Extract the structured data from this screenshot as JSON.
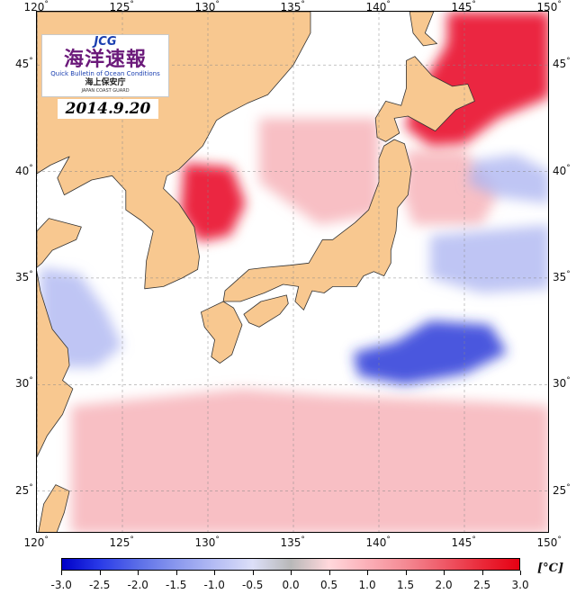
{
  "header": {
    "logo_mark": "JCG",
    "logo_title": "海洋速報",
    "logo_subtitle": "Quick Bulletin of Ocean Conditions",
    "agency": "海上保安庁",
    "agency_en": "JAPAN COAST GUARD",
    "date": "2014.9.20"
  },
  "map": {
    "lon_range": [
      120,
      150
    ],
    "lat_range": [
      23,
      47.5
    ],
    "lon_ticks_top": [
      {
        "value": 120,
        "label": "120"
      },
      {
        "value": 125,
        "label": "125"
      },
      {
        "value": 130,
        "label": "130"
      },
      {
        "value": 135,
        "label": "135"
      },
      {
        "value": 140,
        "label": "140"
      },
      {
        "value": 145,
        "label": "145"
      },
      {
        "value": 150,
        "label": "150"
      }
    ],
    "lon_ticks_bottom": [
      {
        "value": 120,
        "label": "120"
      },
      {
        "value": 125,
        "label": "125"
      },
      {
        "value": 130,
        "label": "130"
      },
      {
        "value": 135,
        "label": "135"
      },
      {
        "value": 140,
        "label": "140"
      },
      {
        "value": 145,
        "label": "145"
      },
      {
        "value": 150,
        "label": "150"
      }
    ],
    "lat_ticks_left": [
      {
        "value": 45,
        "label": "45"
      },
      {
        "value": 40,
        "label": "40"
      },
      {
        "value": 35,
        "label": "35"
      },
      {
        "value": 30,
        "label": "30"
      },
      {
        "value": 25,
        "label": "25"
      }
    ],
    "lat_ticks_right": [
      {
        "value": 45,
        "label": "45"
      },
      {
        "value": 40,
        "label": "40"
      },
      {
        "value": 35,
        "label": "35"
      },
      {
        "value": 30,
        "label": "30"
      },
      {
        "value": 25,
        "label": "25"
      }
    ],
    "degree_symbol": "°",
    "colors": {
      "land": "#f8c890",
      "coast": "#333333",
      "grid": "#888888",
      "anomaly_strong_pos": "#e8001c",
      "anomaly_pos": "#f6aab0",
      "anomaly_neutral": "#ffffff",
      "anomaly_neg": "#aab2f0",
      "anomaly_strong_neg": "#2a38d8"
    },
    "anomaly_regions": [
      {
        "name": "warm-okhotsk",
        "level": "strong_pos",
        "points": [
          [
            144,
            47.5
          ],
          [
            150,
            47.5
          ],
          [
            150,
            43.5
          ],
          [
            147,
            42.5
          ],
          [
            145,
            41.3
          ],
          [
            143,
            41.2
          ],
          [
            141.5,
            42.1
          ],
          [
            142.5,
            44
          ],
          [
            144,
            46
          ]
        ]
      },
      {
        "name": "warm-yellow-sea",
        "level": "strong_pos",
        "points": [
          [
            128.6,
            40.4
          ],
          [
            131.4,
            40.2
          ],
          [
            132.2,
            38.5
          ],
          [
            131.3,
            37
          ],
          [
            129.5,
            36.7
          ],
          [
            128.4,
            38
          ]
        ]
      },
      {
        "name": "warm-south-belt",
        "level": "pos",
        "points": [
          [
            122,
            29
          ],
          [
            132,
            29.8
          ],
          [
            137,
            29.5
          ],
          [
            146,
            29.2
          ],
          [
            150,
            29
          ],
          [
            150,
            23
          ],
          [
            122,
            23
          ]
        ]
      },
      {
        "name": "warm-sea-of-japan",
        "level": "pos",
        "points": [
          [
            133,
            42.5
          ],
          [
            140,
            42.5
          ],
          [
            140,
            38
          ],
          [
            136.5,
            37.5
          ],
          [
            133,
            39.5
          ]
        ]
      },
      {
        "name": "warm-tsugaru-east",
        "level": "pos",
        "points": [
          [
            141.6,
            41
          ],
          [
            145,
            41
          ],
          [
            147,
            39
          ],
          [
            146,
            37.5
          ],
          [
            142,
            37.5
          ],
          [
            141.4,
            39
          ]
        ]
      },
      {
        "name": "cold-kuroshio-south",
        "level": "strong_neg",
        "points": [
          [
            138.5,
            31.5
          ],
          [
            141,
            32
          ],
          [
            143,
            33
          ],
          [
            146.5,
            32.8
          ],
          [
            147.5,
            31.5
          ],
          [
            145,
            30.5
          ],
          [
            141.5,
            30
          ],
          [
            138.8,
            30.4
          ]
        ]
      },
      {
        "name": "cold-sanriku",
        "level": "neg",
        "points": [
          [
            143,
            37
          ],
          [
            150,
            37.5
          ],
          [
            150,
            34.5
          ],
          [
            146,
            34.3
          ],
          [
            143,
            35
          ]
        ]
      },
      {
        "name": "cold-east-china-sea",
        "level": "neg",
        "points": [
          [
            120.2,
            35.5
          ],
          [
            122.5,
            35.2
          ],
          [
            124,
            33.5
          ],
          [
            125,
            31.8
          ],
          [
            123.5,
            30.8
          ],
          [
            121.5,
            30.8
          ],
          [
            120.2,
            32.5
          ]
        ]
      },
      {
        "name": "cold-kuril",
        "level": "neg",
        "points": [
          [
            145.5,
            40.5
          ],
          [
            148,
            40.8
          ],
          [
            150,
            40
          ],
          [
            150,
            38.5
          ],
          [
            147,
            38.8
          ],
          [
            145.2,
            39.4
          ]
        ]
      }
    ],
    "land_polygons": [
      {
        "name": "asia-mainland",
        "points": [
          [
            120,
            47.5
          ],
          [
            136,
            47.5
          ],
          [
            136,
            46.5
          ],
          [
            135,
            45
          ],
          [
            133.5,
            43.6
          ],
          [
            132.3,
            43.2
          ],
          [
            131.1,
            42.7
          ],
          [
            130.5,
            42.4
          ],
          [
            129.7,
            41.2
          ],
          [
            128.3,
            40.1
          ],
          [
            127.6,
            39.8
          ],
          [
            127.4,
            39.2
          ],
          [
            128.3,
            38.5
          ],
          [
            129.2,
            37.4
          ],
          [
            129.5,
            36
          ],
          [
            129.4,
            35.4
          ],
          [
            128.5,
            35
          ],
          [
            127.4,
            34.6
          ],
          [
            126.3,
            34.5
          ],
          [
            126.4,
            35.8
          ],
          [
            126.8,
            37.2
          ],
          [
            126.1,
            37.7
          ],
          [
            125.2,
            38.2
          ],
          [
            125.2,
            39.1
          ],
          [
            124.4,
            39.8
          ],
          [
            123.2,
            39.6
          ],
          [
            121.6,
            38.9
          ],
          [
            121.2,
            39.7
          ],
          [
            121.9,
            40.7
          ],
          [
            120.8,
            40.3
          ],
          [
            120,
            39.9
          ]
        ]
      },
      {
        "name": "shandong-east-china",
        "points": [
          [
            120,
            37.2
          ],
          [
            120.7,
            37.8
          ],
          [
            122.6,
            37.4
          ],
          [
            122.3,
            36.8
          ],
          [
            120.9,
            36.3
          ],
          [
            120.3,
            35.7
          ],
          [
            120,
            35.5
          ]
        ]
      },
      {
        "name": "china-southeast-coast",
        "points": [
          [
            120,
            35.3
          ],
          [
            120.2,
            34.4
          ],
          [
            120.9,
            32.6
          ],
          [
            121.8,
            31.7
          ],
          [
            121.9,
            30.9
          ],
          [
            121.5,
            30.2
          ],
          [
            122.1,
            29.8
          ],
          [
            121.5,
            28.6
          ],
          [
            120.6,
            27.6
          ],
          [
            120,
            26.6
          ]
        ]
      },
      {
        "name": "sakhalin",
        "points": [
          [
            141.8,
            47.5
          ],
          [
            143.2,
            47.5
          ],
          [
            142.7,
            46.5
          ],
          [
            143.4,
            46
          ],
          [
            142.6,
            45.9
          ],
          [
            142,
            46.5
          ]
        ]
      },
      {
        "name": "hokkaido",
        "points": [
          [
            139.9,
            41.6
          ],
          [
            140.4,
            41.4
          ],
          [
            141.2,
            41.8
          ],
          [
            140.9,
            42.5
          ],
          [
            141.7,
            42.6
          ],
          [
            143.3,
            41.9
          ],
          [
            144.5,
            42.9
          ],
          [
            145.6,
            43.3
          ],
          [
            145.2,
            44.1
          ],
          [
            144.3,
            44
          ],
          [
            143.1,
            44.5
          ],
          [
            142.1,
            45.4
          ],
          [
            141.6,
            45.2
          ],
          [
            141.6,
            43.9
          ],
          [
            141.3,
            43.1
          ],
          [
            140.4,
            43.3
          ],
          [
            139.8,
            42.5
          ]
        ]
      },
      {
        "name": "honshu",
        "points": [
          [
            140.9,
            41.5
          ],
          [
            141.5,
            41.3
          ],
          [
            141.9,
            40.1
          ],
          [
            141.7,
            38.9
          ],
          [
            141.1,
            38.3
          ],
          [
            141,
            37.2
          ],
          [
            140.7,
            36.3
          ],
          [
            140.7,
            35.7
          ],
          [
            140.3,
            35.1
          ],
          [
            139.7,
            35.3
          ],
          [
            139.1,
            35.1
          ],
          [
            138.7,
            34.6
          ],
          [
            138.2,
            34.6
          ],
          [
            137.3,
            34.6
          ],
          [
            136.8,
            34.3
          ],
          [
            136.1,
            34.4
          ],
          [
            135.6,
            33.5
          ],
          [
            135.1,
            33.9
          ],
          [
            135.3,
            34.6
          ],
          [
            134.4,
            34.7
          ],
          [
            133.3,
            34.3
          ],
          [
            131.9,
            33.9
          ],
          [
            130.9,
            33.9
          ],
          [
            131,
            34.4
          ],
          [
            132.4,
            35.4
          ],
          [
            133.4,
            35.5
          ],
          [
            134.8,
            35.6
          ],
          [
            135.9,
            35.7
          ],
          [
            136.7,
            36.8
          ],
          [
            137.3,
            36.8
          ],
          [
            138.6,
            37.6
          ],
          [
            139.4,
            38.2
          ],
          [
            140,
            39.5
          ],
          [
            140,
            40.6
          ],
          [
            140.3,
            41.2
          ]
        ]
      },
      {
        "name": "kyushu",
        "points": [
          [
            129.6,
            33.4
          ],
          [
            130.9,
            33.9
          ],
          [
            131.5,
            33.6
          ],
          [
            132,
            32.8
          ],
          [
            131.4,
            31.4
          ],
          [
            130.7,
            31
          ],
          [
            130.2,
            31.3
          ],
          [
            130.4,
            32.1
          ],
          [
            129.8,
            32.7
          ]
        ]
      },
      {
        "name": "shikoku",
        "points": [
          [
            132.1,
            33.3
          ],
          [
            133.1,
            33.9
          ],
          [
            134.6,
            34.2
          ],
          [
            134.7,
            33.8
          ],
          [
            134.2,
            33.3
          ],
          [
            133,
            32.7
          ],
          [
            132.4,
            32.9
          ]
        ]
      },
      {
        "name": "taiwan",
        "points": [
          [
            121.1,
            25.3
          ],
          [
            121.9,
            25
          ],
          [
            121.6,
            24
          ],
          [
            120.9,
            22.5
          ],
          [
            120.1,
            23.1
          ],
          [
            120.4,
            24.4
          ]
        ]
      }
    ]
  },
  "colorbar": {
    "ticks": [
      "-3.0",
      "-2.5",
      "-2.0",
      "-1.5",
      "-1.0",
      "-0.5",
      "0.0",
      "0.5",
      "1.0",
      "1.5",
      "2.0",
      "2.5",
      "3.0"
    ],
    "unit": "[°C]",
    "stops": [
      "#0000c8",
      "#2a3be8",
      "#5b6ee8",
      "#8a98ee",
      "#b4bcf4",
      "#dcdff8",
      "#b8b8b8",
      "#ffd8dc",
      "#fbb0b8",
      "#f48a94",
      "#ef5a68",
      "#ea2a3a",
      "#e60012"
    ]
  }
}
